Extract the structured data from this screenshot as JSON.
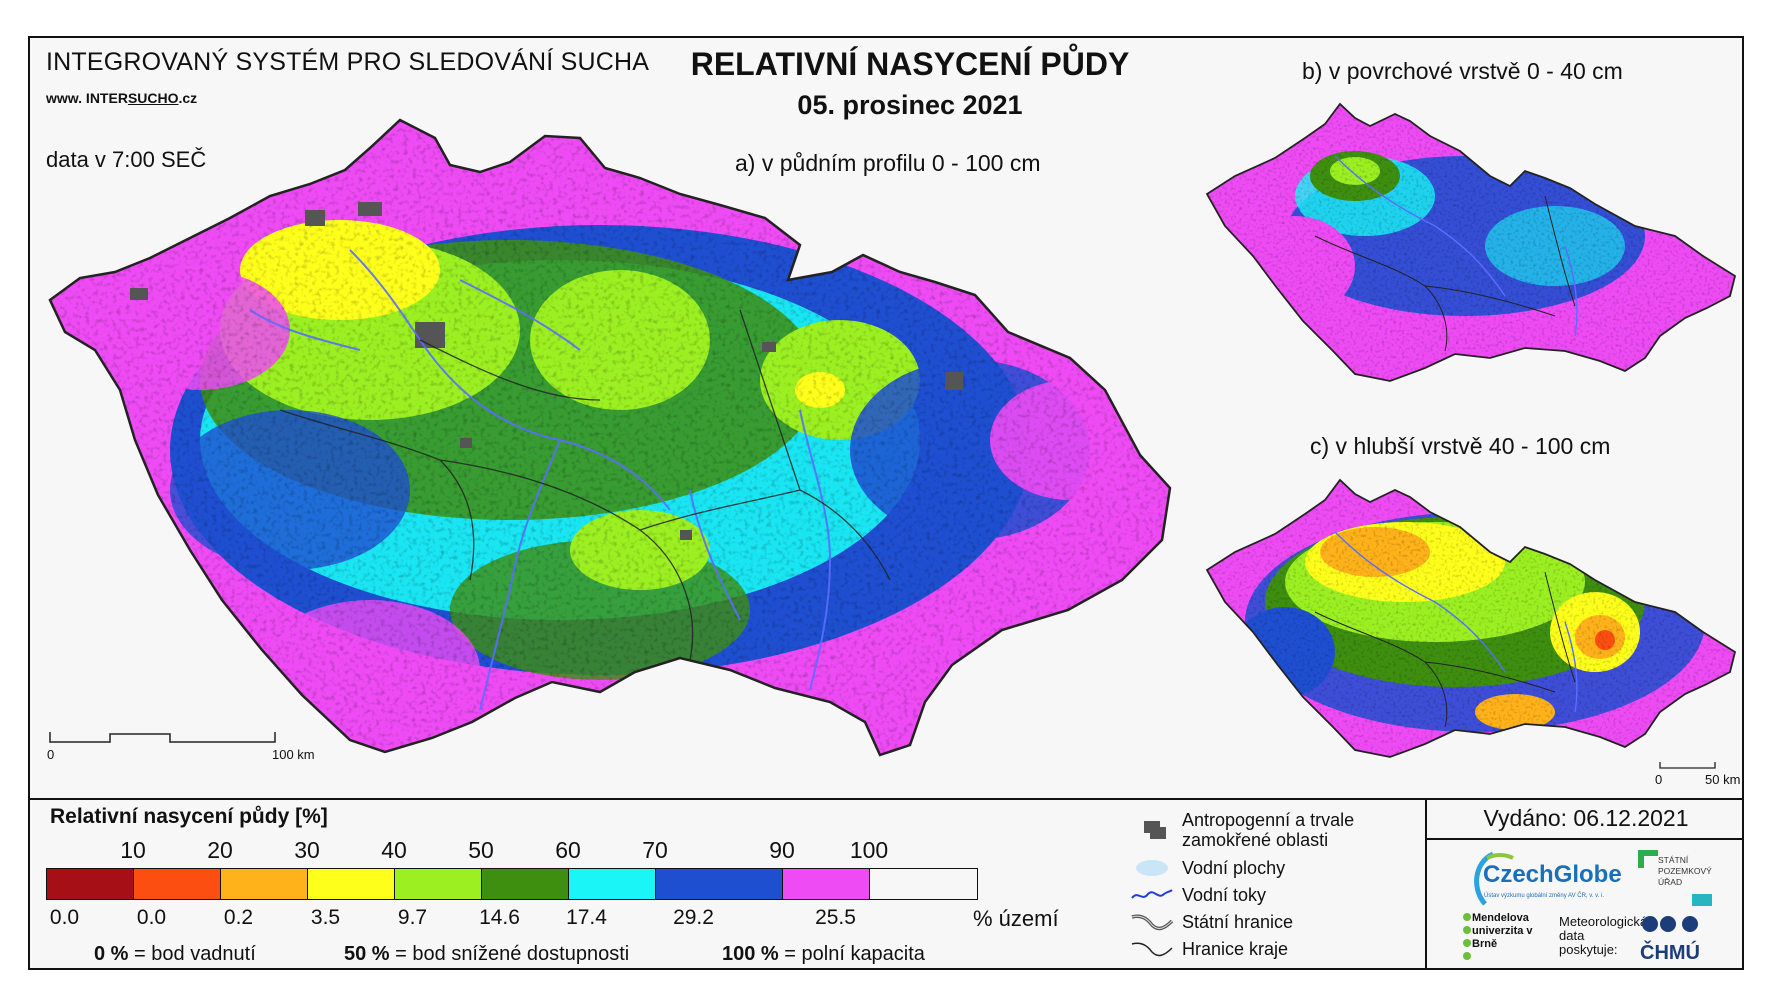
{
  "header": {
    "system_name": "INTEGROVANÝ SYSTÉM PRO SLEDOVÁNÍ SUCHA",
    "website_prefix": "www. INTER",
    "website_underlined": "SUCHO",
    "website_suffix": ".cz",
    "data_time": "data v 7:00 SEČ",
    "title": "RELATIVNÍ NASYCENÍ PŮDY",
    "date": "05. prosinec 2021"
  },
  "maps": {
    "main": {
      "caption": "a) v půdním profilu 0 - 100 cm",
      "scale_start": "0",
      "scale_end": "100 km"
    },
    "surface": {
      "caption": "b) v povrchové vrstvě 0 - 40 cm"
    },
    "deep": {
      "caption": "c) v hlubší vrstvě 40 - 100 cm",
      "scale_start": "0",
      "scale_end": "50 km"
    }
  },
  "legend": {
    "title": "Relativní nasycení půdy [%]",
    "boundaries": [
      "10",
      "20",
      "30",
      "40",
      "50",
      "60",
      "70",
      "90",
      "100"
    ],
    "classes": [
      {
        "color": "#a50f15",
        "area_pct": "0.0"
      },
      {
        "color": "#fc4e11",
        "area_pct": "0.0"
      },
      {
        "color": "#ffb21a",
        "area_pct": "0.2"
      },
      {
        "color": "#ffff1c",
        "area_pct": "3.5"
      },
      {
        "color": "#9cf022",
        "area_pct": "9.7"
      },
      {
        "color": "#3e8f10",
        "area_pct": "14.6"
      },
      {
        "color": "#1af5f5",
        "area_pct": "17.4"
      },
      {
        "color": "#1f4fd1",
        "area_pct": "29.2"
      },
      {
        "color": "#ee4bf5",
        "area_pct": "25.5"
      }
    ],
    "area_unit": "% území",
    "notes": [
      {
        "value": "0 %",
        "text": " = bod vadnutí"
      },
      {
        "value": "50 %",
        "text": " = bod snížené dostupnosti"
      },
      {
        "value": "100 %",
        "text": " = polní kapacita"
      }
    ]
  },
  "symbols": [
    {
      "icon": "urban-area-icon",
      "label": "Antropogenní a trvale zamokřené oblasti"
    },
    {
      "icon": "water-body-icon",
      "label": "Vodní plochy"
    },
    {
      "icon": "river-icon",
      "label": "Vodní toky"
    },
    {
      "icon": "state-border-icon",
      "label": "Státní hranice"
    },
    {
      "icon": "region-border-icon",
      "label": "Hranice kraje"
    }
  ],
  "footer": {
    "issued": "Vydáno: 06.12.2021",
    "czechglobe": "CzechGlobe",
    "czechglobe_sub": "Ústav výzkumu globální změny AV ČR, v. v. i.",
    "spu": "STÁTNÍ POZEMKOVÝ ÚŘAD",
    "mendel": "Mendelova univerzita v Brně",
    "meteo": "Meteorologická data poskytuje:",
    "chmu": "ČHMÚ"
  },
  "colors": {
    "urban": "#555555",
    "river": "#5a6dff",
    "border": "#222222"
  }
}
